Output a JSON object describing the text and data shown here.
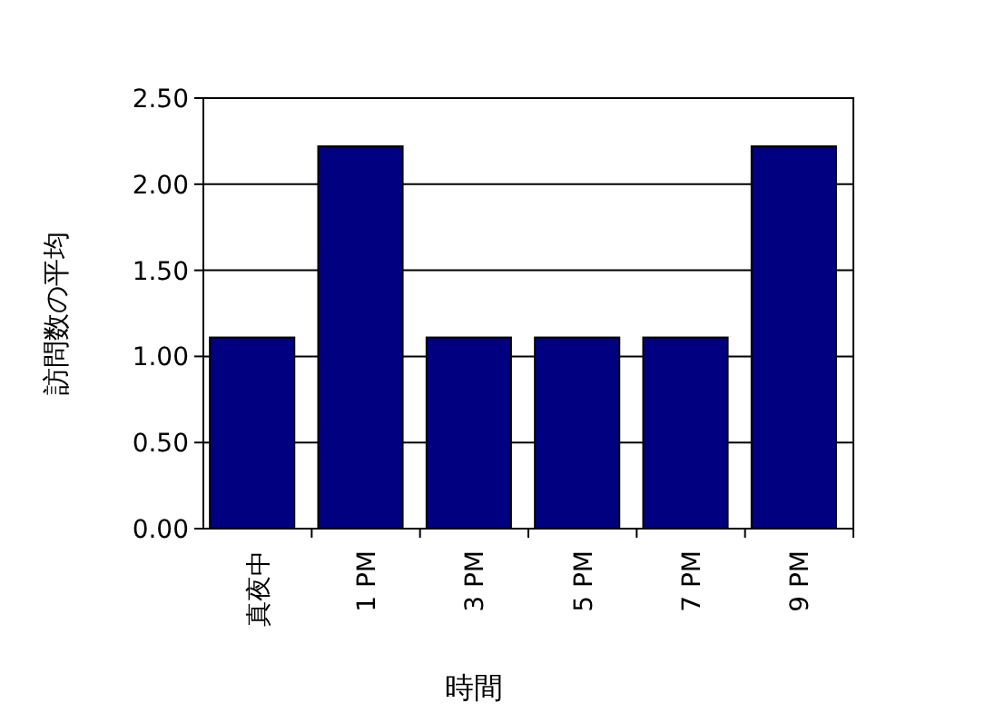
{
  "chart_data": {
    "type": "bar",
    "xlabel": "時間",
    "ylabel": "訪問数の平均",
    "categories": [
      "真夜中",
      "1 PM",
      "3 PM",
      "5 PM",
      "7 PM",
      "9 PM"
    ],
    "values": [
      1.11,
      2.22,
      1.11,
      1.11,
      1.11,
      2.22
    ],
    "color": "#000080",
    "ylim": [
      0,
      2.5
    ],
    "yticks": [
      {
        "value": 0,
        "label": "0.00"
      },
      {
        "value": 0.5,
        "label": "0.50"
      },
      {
        "value": 1,
        "label": "1.00"
      },
      {
        "value": 1.5,
        "label": "1.50"
      },
      {
        "value": 2,
        "label": "2.00"
      },
      {
        "value": 2.5,
        "label": "2.50"
      }
    ],
    "grid": "y"
  }
}
